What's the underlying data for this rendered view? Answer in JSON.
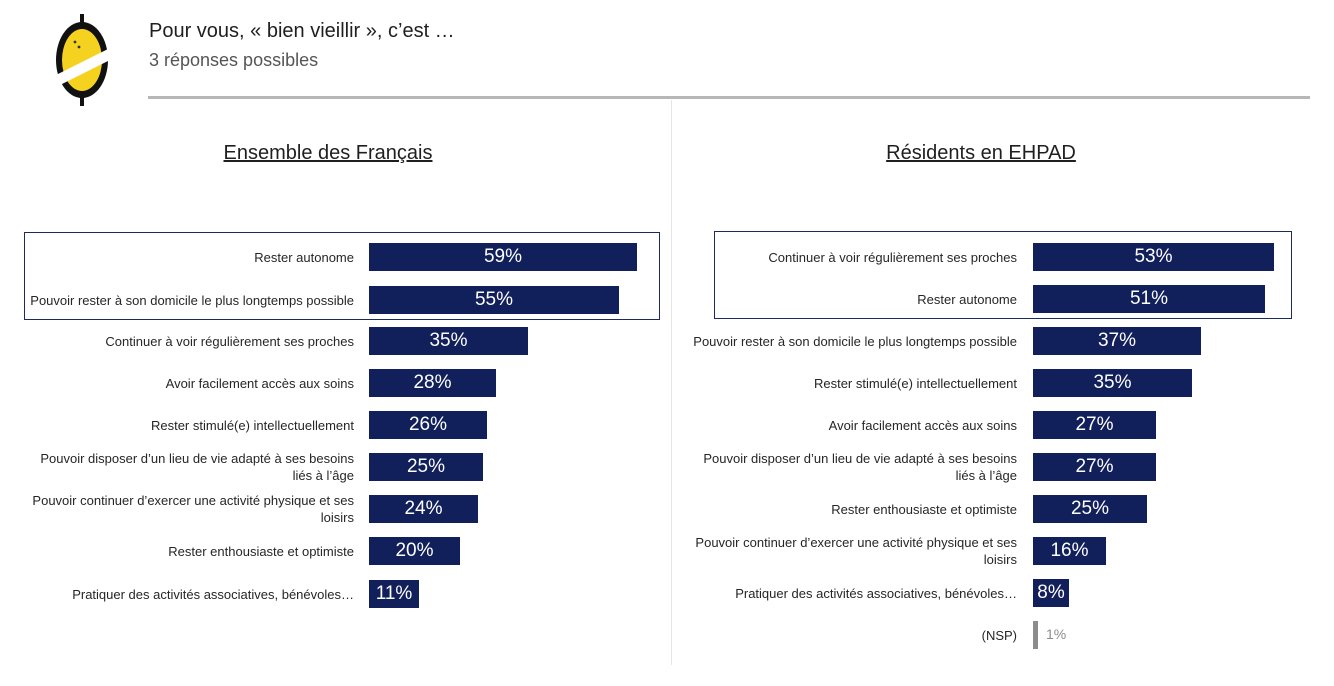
{
  "header": {
    "title": "Pour vous, « bien vieillir », c’est …",
    "subtitle": "3 réponses possibles"
  },
  "colors": {
    "bar": "#111f5b",
    "nsp_bar": "#8c8c8c",
    "box_border": "#1c2a5c",
    "logo_yellow": "#f5d21f"
  },
  "chart_data": [
    {
      "type": "bar",
      "orientation": "horizontal",
      "title": "Ensemble des Français",
      "unit": "%",
      "xlim": [
        0,
        60
      ],
      "highlighted_top_n": 2,
      "categories": [
        "Rester autonome",
        "Pouvoir rester à son domicile le plus longtemps possible",
        "Continuer à voir régulièrement ses proches",
        "Avoir facilement accès aux soins",
        "Rester stimulé(e) intellectuellement",
        "Pouvoir disposer d’un lieu de vie adapté à ses besoins liés à l’âge",
        "Pouvoir continuer d’exercer une activité physique et ses loisirs",
        "Rester enthousiaste et optimiste",
        "Pratiquer des activités associatives, bénévoles…"
      ],
      "values": [
        59,
        55,
        35,
        28,
        26,
        25,
        24,
        20,
        11
      ],
      "value_labels": [
        "59%",
        "55%",
        "35%",
        "28%",
        "26%",
        "25%",
        "24%",
        "20%",
        "11%"
      ]
    },
    {
      "type": "bar",
      "orientation": "horizontal",
      "title": "Résidents en EHPAD",
      "unit": "%",
      "xlim": [
        0,
        60
      ],
      "highlighted_top_n": 2,
      "categories": [
        "Continuer à voir régulièrement ses proches",
        "Rester autonome",
        "Pouvoir rester à son domicile le plus longtemps possible",
        "Rester stimulé(e) intellectuellement",
        "Avoir facilement accès aux soins",
        "Pouvoir disposer d’un lieu de vie adapté à ses besoins liés à l’âge",
        "Rester enthousiaste et optimiste",
        "Pouvoir continuer d’exercer une activité physique et ses loisirs",
        "Pratiquer des activités associatives, bénévoles…",
        "(NSP)"
      ],
      "values": [
        53,
        51,
        37,
        35,
        27,
        27,
        25,
        16,
        8,
        1
      ],
      "value_labels": [
        "53%",
        "51%",
        "37%",
        "35%",
        "27%",
        "27%",
        "25%",
        "16%",
        "8%",
        "1%"
      ]
    }
  ]
}
